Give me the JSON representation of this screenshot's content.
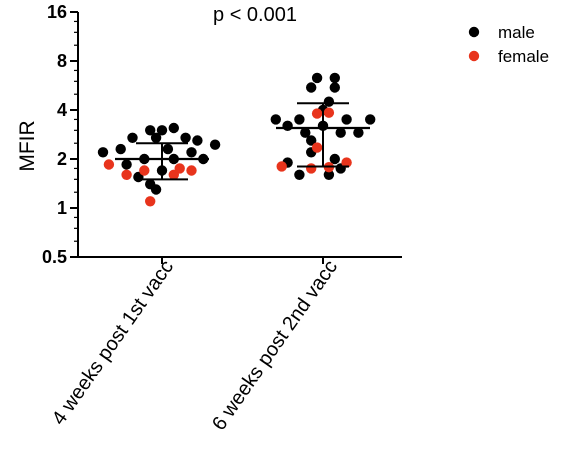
{
  "chart_data": {
    "type": "scatter",
    "title": "",
    "annotation": "p < 0.001",
    "ylabel": "MFIR",
    "xlabel": "",
    "yscale": "log2",
    "ylim": [
      0.5,
      16
    ],
    "yticks": [
      0.5,
      1,
      2,
      4,
      8,
      16
    ],
    "ytick_labels": [
      "0.5",
      "1",
      "2",
      "4",
      "8",
      "16"
    ],
    "categories": [
      "4 weeks post 1st vacc",
      "6 weeks post 2nd vacc"
    ],
    "legend": {
      "placement": "top-right",
      "entries": [
        {
          "label": "male",
          "color": "#000000"
        },
        {
          "label": "female",
          "color": "#e8341c"
        }
      ]
    },
    "summary": [
      {
        "category": "4 weeks post 1st vacc",
        "mean": 2.0,
        "sd_low": 1.5,
        "sd_high": 2.5
      },
      {
        "category": "6 weeks post 2nd vacc",
        "mean": 3.1,
        "sd_low": 1.8,
        "sd_high": 4.4
      }
    ],
    "series": [
      {
        "name": "male",
        "color": "#000000",
        "points": [
          {
            "category": "4 weeks post 1st vacc",
            "offset": 0.1,
            "y": 3.1
          },
          {
            "category": "4 weeks post 1st vacc",
            "offset": -0.1,
            "y": 3.0
          },
          {
            "category": "4 weeks post 1st vacc",
            "offset": 0.0,
            "y": 3.0
          },
          {
            "category": "4 weeks post 1st vacc",
            "offset": -0.25,
            "y": 2.7
          },
          {
            "category": "4 weeks post 1st vacc",
            "offset": -0.05,
            "y": 2.7
          },
          {
            "category": "4 weeks post 1st vacc",
            "offset": 0.2,
            "y": 2.7
          },
          {
            "category": "4 weeks post 1st vacc",
            "offset": 0.3,
            "y": 2.6
          },
          {
            "category": "4 weeks post 1st vacc",
            "offset": 0.45,
            "y": 2.45
          },
          {
            "category": "4 weeks post 1st vacc",
            "offset": -0.35,
            "y": 2.3
          },
          {
            "category": "4 weeks post 1st vacc",
            "offset": -0.5,
            "y": 2.2
          },
          {
            "category": "4 weeks post 1st vacc",
            "offset": 0.05,
            "y": 2.3
          },
          {
            "category": "4 weeks post 1st vacc",
            "offset": 0.25,
            "y": 2.2
          },
          {
            "category": "4 weeks post 1st vacc",
            "offset": -0.15,
            "y": 2.0
          },
          {
            "category": "4 weeks post 1st vacc",
            "offset": 0.1,
            "y": 2.0
          },
          {
            "category": "4 weeks post 1st vacc",
            "offset": 0.35,
            "y": 2.0
          },
          {
            "category": "4 weeks post 1st vacc",
            "offset": -0.3,
            "y": 1.85
          },
          {
            "category": "4 weeks post 1st vacc",
            "offset": 0.0,
            "y": 1.7
          },
          {
            "category": "4 weeks post 1st vacc",
            "offset": -0.2,
            "y": 1.55
          },
          {
            "category": "4 weeks post 1st vacc",
            "offset": -0.1,
            "y": 1.4
          },
          {
            "category": "4 weeks post 1st vacc",
            "offset": -0.05,
            "y": 1.3
          },
          {
            "category": "6 weeks post 2nd vacc",
            "offset": -0.05,
            "y": 6.3
          },
          {
            "category": "6 weeks post 2nd vacc",
            "offset": 0.1,
            "y": 6.3
          },
          {
            "category": "6 weeks post 2nd vacc",
            "offset": -0.1,
            "y": 5.5
          },
          {
            "category": "6 weeks post 2nd vacc",
            "offset": 0.1,
            "y": 5.5
          },
          {
            "category": "6 weeks post 2nd vacc",
            "offset": 0.05,
            "y": 4.5
          },
          {
            "category": "6 weeks post 2nd vacc",
            "offset": 0.0,
            "y": 4.0
          },
          {
            "category": "6 weeks post 2nd vacc",
            "offset": -0.4,
            "y": 3.5
          },
          {
            "category": "6 weeks post 2nd vacc",
            "offset": -0.2,
            "y": 3.5
          },
          {
            "category": "6 weeks post 2nd vacc",
            "offset": 0.2,
            "y": 3.5
          },
          {
            "category": "6 weeks post 2nd vacc",
            "offset": 0.4,
            "y": 3.5
          },
          {
            "category": "6 weeks post 2nd vacc",
            "offset": -0.3,
            "y": 3.2
          },
          {
            "category": "6 weeks post 2nd vacc",
            "offset": 0.0,
            "y": 3.2
          },
          {
            "category": "6 weeks post 2nd vacc",
            "offset": -0.15,
            "y": 2.9
          },
          {
            "category": "6 weeks post 2nd vacc",
            "offset": 0.15,
            "y": 2.9
          },
          {
            "category": "6 weeks post 2nd vacc",
            "offset": 0.3,
            "y": 2.9
          },
          {
            "category": "6 weeks post 2nd vacc",
            "offset": -0.1,
            "y": 2.6
          },
          {
            "category": "6 weeks post 2nd vacc",
            "offset": -0.1,
            "y": 2.2
          },
          {
            "category": "6 weeks post 2nd vacc",
            "offset": 0.1,
            "y": 2.0
          },
          {
            "category": "6 weeks post 2nd vacc",
            "offset": -0.3,
            "y": 1.9
          },
          {
            "category": "6 weeks post 2nd vacc",
            "offset": 0.15,
            "y": 1.75
          },
          {
            "category": "6 weeks post 2nd vacc",
            "offset": -0.2,
            "y": 1.6
          },
          {
            "category": "6 weeks post 2nd vacc",
            "offset": 0.05,
            "y": 1.6
          }
        ]
      },
      {
        "name": "female",
        "color": "#e8341c",
        "points": [
          {
            "category": "4 weeks post 1st vacc",
            "offset": -0.45,
            "y": 1.85
          },
          {
            "category": "4 weeks post 1st vacc",
            "offset": -0.15,
            "y": 1.7
          },
          {
            "category": "4 weeks post 1st vacc",
            "offset": 0.15,
            "y": 1.75
          },
          {
            "category": "4 weeks post 1st vacc",
            "offset": 0.25,
            "y": 1.7
          },
          {
            "category": "4 weeks post 1st vacc",
            "offset": 0.1,
            "y": 1.6
          },
          {
            "category": "4 weeks post 1st vacc",
            "offset": -0.3,
            "y": 1.6
          },
          {
            "category": "4 weeks post 1st vacc",
            "offset": -0.1,
            "y": 1.1
          },
          {
            "category": "6 weeks post 2nd vacc",
            "offset": -0.05,
            "y": 3.8
          },
          {
            "category": "6 weeks post 2nd vacc",
            "offset": 0.05,
            "y": 3.85
          },
          {
            "category": "6 weeks post 2nd vacc",
            "offset": -0.05,
            "y": 2.35
          },
          {
            "category": "6 weeks post 2nd vacc",
            "offset": 0.2,
            "y": 1.9
          },
          {
            "category": "6 weeks post 2nd vacc",
            "offset": -0.35,
            "y": 1.8
          },
          {
            "category": "6 weeks post 2nd vacc",
            "offset": -0.1,
            "y": 1.75
          },
          {
            "category": "6 weeks post 2nd vacc",
            "offset": 0.05,
            "y": 1.78
          }
        ]
      }
    ]
  }
}
